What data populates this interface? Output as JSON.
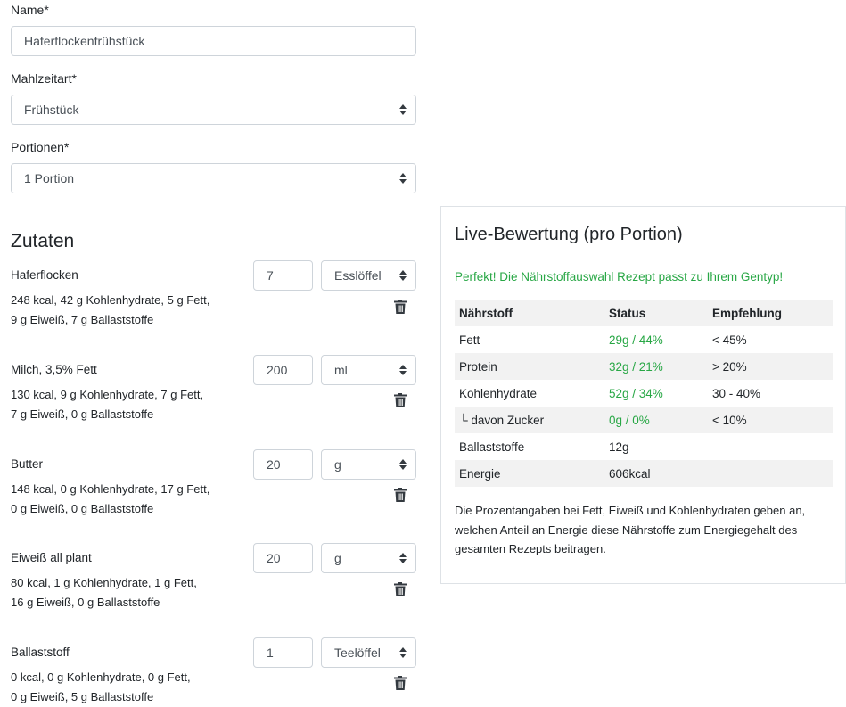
{
  "form": {
    "name_label": "Name*",
    "name_value": "Haferflockenfrühstück",
    "meal_label": "Mahlzeitart*",
    "meal_value": "Frühstück",
    "portions_label": "Portionen*",
    "portions_value": "1 Portion"
  },
  "ingredients": {
    "heading": "Zutaten",
    "items": [
      {
        "name": "Haferflocken",
        "amount": "7",
        "unit": "Esslöffel",
        "line1": "248 kcal,  42 g Kohlenhydrate,  5 g Fett,",
        "line2": "9 g Eiweiß,  7 g Ballaststoffe"
      },
      {
        "name": "Milch, 3,5% Fett",
        "amount": "200",
        "unit": "ml",
        "line1": "130 kcal,  9 g Kohlenhydrate,  7 g Fett,",
        "line2": "7 g Eiweiß,  0 g Ballaststoffe"
      },
      {
        "name": "Butter",
        "amount": "20",
        "unit": "g",
        "line1": "148 kcal,  0 g Kohlenhydrate,  17 g Fett,",
        "line2": "0 g Eiweiß,  0 g Ballaststoffe"
      },
      {
        "name": "Eiweiß all plant",
        "amount": "20",
        "unit": "g",
        "line1": "80 kcal,  1 g Kohlenhydrate,  1 g Fett,",
        "line2": "16 g Eiweiß,  0 g Ballaststoffe"
      },
      {
        "name": "Ballaststoff",
        "amount": "1",
        "unit": "Teelöffel",
        "line1": "0 kcal,  0 g Kohlenhydrate,  0 g Fett,",
        "line2": "0 g Eiweiß,  5 g Ballaststoffe"
      }
    ]
  },
  "evaluation": {
    "title": "Live-Bewertung (pro Portion)",
    "message": "Perfekt! Die Nährstoffauswahl Rezept passt zu Ihrem Gentyp!",
    "columns": [
      "Nährstoff",
      "Status",
      "Empfehlung"
    ],
    "rows": [
      {
        "nutrient": "Fett",
        "status": "29g / 44%",
        "recommendation": "< 45%"
      },
      {
        "nutrient": "Protein",
        "status": "32g / 21%",
        "recommendation": "> 20%"
      },
      {
        "nutrient": "Kohlenhydrate",
        "status": "52g / 34%",
        "recommendation": "30 - 40%"
      },
      {
        "nutrient": "└ davon Zucker",
        "status": "0g / 0%",
        "recommendation": "< 10%"
      },
      {
        "nutrient": "Ballaststoffe",
        "status": "12g",
        "recommendation": ""
      },
      {
        "nutrient": "Energie",
        "status": "606kcal",
        "recommendation": ""
      }
    ],
    "note_lines": [
      "Die Prozentangaben bei Fett, Eiweiß und Kohlenhydraten geben an,",
      "welchen Anteil an Energie diese Nährstoffe zum Energiegehalt des",
      "gesamten Rezepts beitragen."
    ]
  },
  "colors": {
    "success": "#28a745",
    "border": "#ced4da",
    "table_stripe": "#f2f2f2"
  },
  "icons": {
    "select_caret": "sort-caret-icon",
    "delete": "trash-icon"
  }
}
